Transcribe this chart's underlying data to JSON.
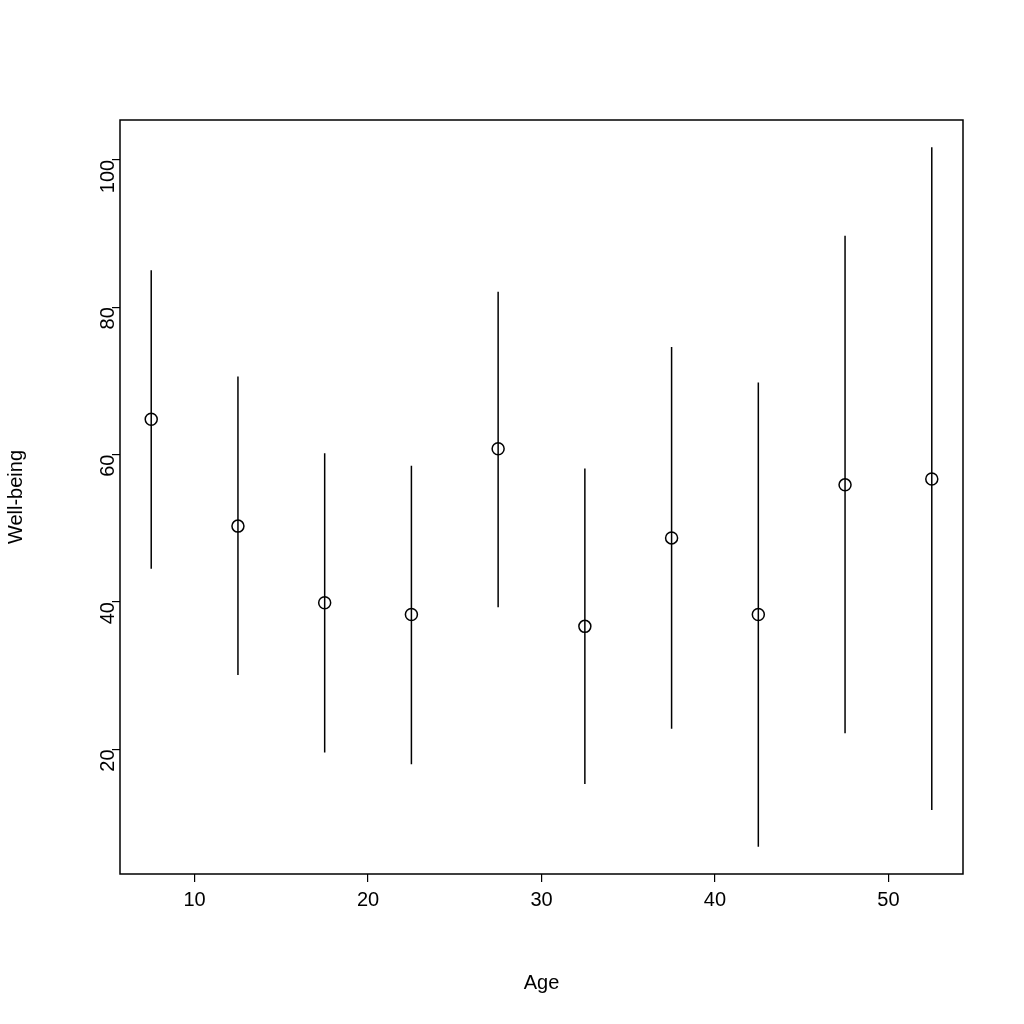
{
  "chart_data": {
    "type": "scatter",
    "xlabel": "Age",
    "ylabel": "Well-being",
    "x": [
      7.5,
      12.5,
      17.5,
      22.5,
      27.5,
      32.5,
      37.5,
      42.5,
      47.5,
      52.5
    ],
    "series": [
      {
        "color": "#000000",
        "values": [
          64.8,
          50.3,
          39.9,
          38.3,
          60.8,
          36.7,
          48.7,
          38.3,
          55.9,
          56.7
        ],
        "errors": [
          [
            44.5,
            85.0
          ],
          [
            30.1,
            70.6
          ],
          [
            19.6,
            60.2
          ],
          [
            18.0,
            58.5
          ],
          [
            39.3,
            82.1
          ],
          [
            15.3,
            58.1
          ],
          [
            22.8,
            74.6
          ],
          [
            6.8,
            69.8
          ],
          [
            22.2,
            89.7
          ],
          [
            11.8,
            101.7
          ]
        ]
      }
    ],
    "xlim": [
      5.7,
      54.3
    ],
    "xticks": [
      10,
      20,
      30,
      40,
      50
    ],
    "ylim": [
      3.1,
      105.4
    ],
    "yticks": [
      20,
      40,
      60,
      80,
      100
    ],
    "marker": "circle",
    "grid": false,
    "legend": false
  }
}
